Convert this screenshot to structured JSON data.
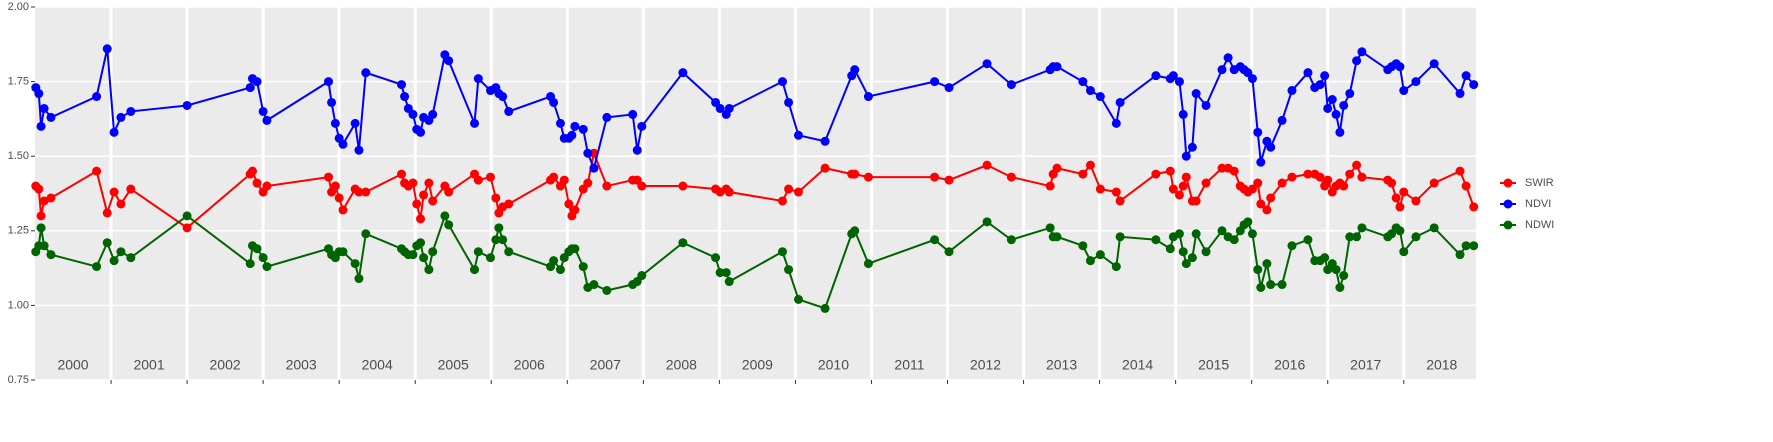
{
  "chart_data": {
    "type": "line",
    "x": [
      2000.01,
      2000.05,
      2000.08,
      2000.12,
      2000.21,
      2000.81,
      2000.95,
      2001.04,
      2001.13,
      2001.26,
      2002.0,
      2002.83,
      2002.86,
      2002.92,
      2003.0,
      2003.05,
      2003.86,
      2003.9,
      2003.95,
      2004.0,
      2004.05,
      2004.21,
      2004.26,
      2004.35,
      2004.82,
      2004.86,
      2004.91,
      2004.97,
      2005.02,
      2005.07,
      2005.11,
      2005.18,
      2005.23,
      2005.39,
      2005.44,
      2005.78,
      2005.83,
      2005.99,
      2006.06,
      2006.1,
      2006.15,
      2006.23,
      2006.78,
      2006.82,
      2006.91,
      2006.96,
      2007.02,
      2007.06,
      2007.1,
      2007.21,
      2007.27,
      2007.35,
      2007.52,
      2007.86,
      2007.92,
      2007.98,
      2008.52,
      2008.95,
      2009.01,
      2009.09,
      2009.13,
      2009.83,
      2009.91,
      2010.04,
      2010.39,
      2010.74,
      2010.78,
      2010.96,
      2011.83,
      2012.02,
      2012.52,
      2012.84,
      2013.35,
      2013.39,
      2013.44,
      2013.78,
      2013.88,
      2014.01,
      2014.22,
      2014.27,
      2014.74,
      2014.93,
      2014.97,
      2015.05,
      2015.1,
      2015.14,
      2015.22,
      2015.27,
      2015.4,
      2015.61,
      2015.69,
      2015.77,
      2015.85,
      2015.9,
      2015.95,
      2016.01,
      2016.08,
      2016.12,
      2016.2,
      2016.25,
      2016.4,
      2016.53,
      2016.74,
      2016.83,
      2016.9,
      2016.96,
      2017.0,
      2017.06,
      2017.11,
      2017.16,
      2017.21,
      2017.29,
      2017.38,
      2017.45,
      2017.79,
      2017.84,
      2017.9,
      2017.95,
      2018.0,
      2018.16,
      2018.4,
      2018.74,
      2018.82,
      2018.92
    ],
    "series": [
      {
        "name": "SWIR",
        "color": "#ff0000",
        "values": [
          1.4,
          1.39,
          1.3,
          1.35,
          1.36,
          1.45,
          1.31,
          1.38,
          1.34,
          1.39,
          1.26,
          1.44,
          1.45,
          1.41,
          1.38,
          1.4,
          1.43,
          1.38,
          1.4,
          1.36,
          1.32,
          1.39,
          1.38,
          1.38,
          1.44,
          1.41,
          1.4,
          1.41,
          1.34,
          1.29,
          1.37,
          1.41,
          1.35,
          1.4,
          1.38,
          1.44,
          1.42,
          1.43,
          1.36,
          1.31,
          1.33,
          1.34,
          1.42,
          1.43,
          1.4,
          1.42,
          1.34,
          1.3,
          1.32,
          1.39,
          1.41,
          1.51,
          1.4,
          1.42,
          1.42,
          1.4,
          1.4,
          1.39,
          1.38,
          1.39,
          1.38,
          1.35,
          1.39,
          1.38,
          1.46,
          1.44,
          1.44,
          1.43,
          1.43,
          1.42,
          1.47,
          1.43,
          1.4,
          1.44,
          1.46,
          1.44,
          1.47,
          1.39,
          1.38,
          1.35,
          1.44,
          1.45,
          1.39,
          1.37,
          1.4,
          1.43,
          1.35,
          1.35,
          1.41,
          1.46,
          1.46,
          1.45,
          1.4,
          1.39,
          1.38,
          1.39,
          1.41,
          1.34,
          1.32,
          1.36,
          1.41,
          1.43,
          1.44,
          1.44,
          1.43,
          1.4,
          1.42,
          1.38,
          1.4,
          1.41,
          1.4,
          1.44,
          1.47,
          1.43,
          1.42,
          1.41,
          1.36,
          1.33,
          1.38,
          1.35,
          1.41,
          1.45,
          1.4,
          1.33
        ]
      },
      {
        "name": "NDVI",
        "color": "#0000ff",
        "values": [
          1.73,
          1.71,
          1.6,
          1.66,
          1.63,
          1.7,
          1.86,
          1.58,
          1.63,
          1.65,
          1.67,
          1.73,
          1.76,
          1.75,
          1.65,
          1.62,
          1.75,
          1.68,
          1.61,
          1.56,
          1.54,
          1.61,
          1.52,
          1.78,
          1.74,
          1.7,
          1.66,
          1.64,
          1.59,
          1.58,
          1.63,
          1.62,
          1.64,
          1.84,
          1.82,
          1.61,
          1.76,
          1.72,
          1.73,
          1.71,
          1.7,
          1.65,
          1.7,
          1.68,
          1.61,
          1.56,
          1.56,
          1.57,
          1.6,
          1.59,
          1.51,
          1.46,
          1.63,
          1.64,
          1.52,
          1.6,
          1.78,
          1.68,
          1.66,
          1.64,
          1.66,
          1.75,
          1.68,
          1.57,
          1.55,
          1.77,
          1.79,
          1.7,
          1.75,
          1.73,
          1.81,
          1.74,
          1.79,
          1.8,
          1.8,
          1.75,
          1.72,
          1.7,
          1.61,
          1.68,
          1.77,
          1.76,
          1.77,
          1.75,
          1.64,
          1.5,
          1.53,
          1.71,
          1.67,
          1.79,
          1.83,
          1.79,
          1.8,
          1.79,
          1.78,
          1.76,
          1.58,
          1.48,
          1.55,
          1.53,
          1.62,
          1.72,
          1.78,
          1.73,
          1.74,
          1.77,
          1.66,
          1.69,
          1.64,
          1.58,
          1.67,
          1.71,
          1.82,
          1.85,
          1.79,
          1.8,
          1.81,
          1.8,
          1.72,
          1.75,
          1.81,
          1.71,
          1.77,
          1.74
        ]
      },
      {
        "name": "NDWI",
        "color": "#006400",
        "values": [
          1.18,
          1.2,
          1.26,
          1.2,
          1.17,
          1.13,
          1.21,
          1.15,
          1.18,
          1.16,
          1.3,
          1.14,
          1.2,
          1.19,
          1.16,
          1.13,
          1.19,
          1.17,
          1.16,
          1.18,
          1.18,
          1.14,
          1.09,
          1.24,
          1.19,
          1.18,
          1.17,
          1.17,
          1.2,
          1.21,
          1.16,
          1.12,
          1.18,
          1.3,
          1.27,
          1.12,
          1.18,
          1.16,
          1.22,
          1.26,
          1.22,
          1.18,
          1.13,
          1.15,
          1.12,
          1.16,
          1.18,
          1.19,
          1.19,
          1.13,
          1.06,
          1.07,
          1.05,
          1.07,
          1.08,
          1.1,
          1.21,
          1.16,
          1.11,
          1.11,
          1.08,
          1.18,
          1.12,
          1.02,
          0.99,
          1.24,
          1.25,
          1.14,
          1.22,
          1.18,
          1.28,
          1.22,
          1.26,
          1.23,
          1.23,
          1.2,
          1.15,
          1.17,
          1.13,
          1.23,
          1.22,
          1.19,
          1.23,
          1.24,
          1.18,
          1.14,
          1.16,
          1.24,
          1.18,
          1.25,
          1.23,
          1.22,
          1.25,
          1.27,
          1.28,
          1.24,
          1.12,
          1.06,
          1.14,
          1.07,
          1.07,
          1.2,
          1.22,
          1.15,
          1.15,
          1.16,
          1.12,
          1.14,
          1.12,
          1.06,
          1.1,
          1.23,
          1.23,
          1.26,
          1.23,
          1.24,
          1.26,
          1.25,
          1.18,
          1.23,
          1.26,
          1.17,
          1.2,
          1.2
        ]
      }
    ],
    "xlim": [
      2000.0,
      2018.95
    ],
    "xticks": [
      {
        "value": 2000.5,
        "label": "2000"
      },
      {
        "value": 2001.5,
        "label": "2001"
      },
      {
        "value": 2002.5,
        "label": "2002"
      },
      {
        "value": 2003.5,
        "label": "2003"
      },
      {
        "value": 2004.5,
        "label": "2004"
      },
      {
        "value": 2005.5,
        "label": "2005"
      },
      {
        "value": 2006.5,
        "label": "2006"
      },
      {
        "value": 2007.5,
        "label": "2007"
      },
      {
        "value": 2008.5,
        "label": "2008"
      },
      {
        "value": 2009.5,
        "label": "2009"
      },
      {
        "value": 2010.5,
        "label": "2010"
      },
      {
        "value": 2011.5,
        "label": "2011"
      },
      {
        "value": 2012.5,
        "label": "2012"
      },
      {
        "value": 2013.5,
        "label": "2013"
      },
      {
        "value": 2014.5,
        "label": "2014"
      },
      {
        "value": 2015.5,
        "label": "2015"
      },
      {
        "value": 2016.5,
        "label": "2016"
      },
      {
        "value": 2017.5,
        "label": "2017"
      },
      {
        "value": 2018.5,
        "label": "2018"
      }
    ],
    "xgrid": [
      2001,
      2002,
      2003,
      2004,
      2005,
      2006,
      2007,
      2008,
      2009,
      2010,
      2011,
      2012,
      2013,
      2014,
      2015,
      2016,
      2017,
      2018
    ],
    "ylim": [
      0.75,
      2.0
    ],
    "yticks": [
      {
        "value": 0.75,
        "label": "0.75"
      },
      {
        "value": 1.0,
        "label": "1.00"
      },
      {
        "value": 1.25,
        "label": "1.25"
      },
      {
        "value": 1.5,
        "label": "1.50"
      },
      {
        "value": 1.75,
        "label": "1.75"
      },
      {
        "value": 2.0,
        "label": "2.00"
      }
    ],
    "grid": true,
    "legend": "right"
  }
}
